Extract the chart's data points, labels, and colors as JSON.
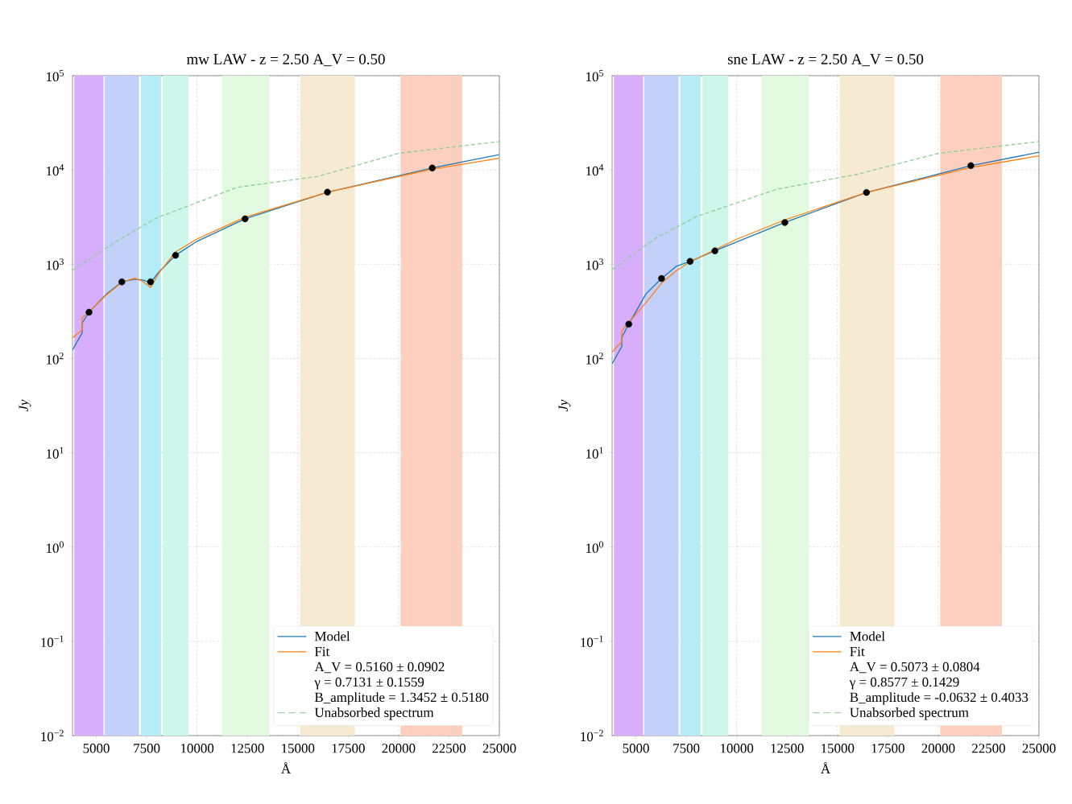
{
  "chart_data": [
    {
      "type": "line",
      "title": "sne LAW - z = 2.50 A_V = 0.50",
      "xlabel": "Å",
      "ylabel": "Jy",
      "log": "y",
      "grid": true,
      "legend": "bottom right",
      "xlim": [
        3820,
        25000
      ],
      "xticks": [
        5000,
        7500,
        10000,
        12500,
        15000,
        17500,
        20000,
        22500,
        25000
      ],
      "ylim": [
        0.01,
        100000
      ],
      "yticks": [
        {
          "value": 0.01,
          "label": "10$^{−2}$"
        },
        {
          "value": 0.1,
          "label": "10$^{−1}$"
        },
        {
          "value": 1,
          "label": "10$^{0}$"
        },
        {
          "value": 10,
          "label": "10$^{1}$"
        },
        {
          "value": 100,
          "label": "10$^{2}$"
        },
        {
          "value": 1000,
          "label": "10$^{3}$"
        },
        {
          "value": 10000,
          "label": "10$^{4}$"
        },
        {
          "value": 100000,
          "label": "10$^{5}$"
        }
      ],
      "bands": [
        {
          "axis": "x",
          "from": 3910,
          "to": 5360,
          "color": "#d6aefb"
        },
        {
          "axis": "x",
          "from": 5420,
          "to": 7120,
          "color": "#c3d1fa"
        },
        {
          "axis": "x",
          "from": 7210,
          "to": 8210,
          "color": "#b5ecf5"
        },
        {
          "axis": "x",
          "from": 8300,
          "to": 9570,
          "color": "#ccf7ea"
        },
        {
          "axis": "x",
          "from": 11230,
          "to": 13590,
          "color": "#e1fae0"
        },
        {
          "axis": "x",
          "from": 15110,
          "to": 17830,
          "color": "#f6ebd2"
        },
        {
          "axis": "x",
          "from": 20100,
          "to": 23160,
          "color": "#fdcfbf"
        }
      ],
      "annotations": [
        "A_V = 0.5073 ± 0.0804",
        "γ = 0.8577 ± 0.1429",
        "B_amplitude = -0.0632 ± 0.4033"
      ],
      "series": [
        {
          "name": "Model",
          "color": "#1f77b4",
          "x": [
            3820,
            4300,
            4300,
            4646,
            5500,
            6270,
            7000,
            7690,
            8920,
            10000,
            12390,
            16440,
            21620,
            25000
          ],
          "values": [
            88,
            134,
            168,
            231,
            485,
            706,
            950,
            1072,
            1387,
            1720,
            2770,
            5770,
            11100,
            15400
          ]
        },
        {
          "name": "Fit",
          "color": "#ff7f0e",
          "x": [
            3820,
            4300,
            4300,
            4646,
            5500,
            6270,
            7000,
            7690,
            8920,
            10000,
            12390,
            16440,
            21620,
            25000
          ],
          "values": [
            117,
            151,
            195,
            240,
            390,
            630,
            850,
            1060,
            1420,
            1840,
            2950,
            5770,
            10600,
            14100
          ]
        },
        {
          "name": "Unabsorbed spectrum",
          "line_style": "dashed",
          "color": "#8fcf8f",
          "x": [
            3820,
            6000,
            8000,
            12000,
            16000,
            20000,
            25000
          ],
          "values": [
            880,
            1900,
            3200,
            6250,
            9000,
            15000,
            20000
          ]
        },
        {
          "type": "scatter",
          "marker": "circle",
          "color": "#000000",
          "x": [
            4646,
            6270,
            7690,
            8920,
            12390,
            16440,
            21620
          ],
          "values": [
            231,
            706,
            1072,
            1387,
            2770,
            5770,
            11100
          ]
        }
      ]
    },
    {
      "type": "line",
      "title": "mw LAW - z = 2.50 A_V = 0.50",
      "xlabel": "Å",
      "ylabel": "Jy",
      "log": "y",
      "grid": true,
      "legend": "bottom right",
      "xlim": [
        3820,
        25000
      ],
      "xticks": [
        5000,
        7500,
        10000,
        12500,
        15000,
        17500,
        20000,
        22500,
        25000
      ],
      "ylim": [
        0.01,
        100000
      ],
      "yticks": [
        {
          "value": 0.01,
          "label": "10$^{−2}$"
        },
        {
          "value": 0.1,
          "label": "10$^{−1}$"
        },
        {
          "value": 1,
          "label": "10$^{0}$"
        },
        {
          "value": 10,
          "label": "10$^{1}$"
        },
        {
          "value": 100,
          "label": "10$^{2}$"
        },
        {
          "value": 1000,
          "label": "10$^{3}$"
        },
        {
          "value": 10000,
          "label": "10$^{4}$"
        },
        {
          "value": 100000,
          "label": "10$^{5}$"
        }
      ],
      "bands": [
        {
          "axis": "x",
          "from": 3910,
          "to": 5360,
          "color": "#d6aefb"
        },
        {
          "axis": "x",
          "from": 5420,
          "to": 7120,
          "color": "#c3d1fa"
        },
        {
          "axis": "x",
          "from": 7210,
          "to": 8210,
          "color": "#b5ecf5"
        },
        {
          "axis": "x",
          "from": 8300,
          "to": 9570,
          "color": "#ccf7ea"
        },
        {
          "axis": "x",
          "from": 11230,
          "to": 13590,
          "color": "#e1fae0"
        },
        {
          "axis": "x",
          "from": 15110,
          "to": 17830,
          "color": "#f6ebd2"
        },
        {
          "axis": "x",
          "from": 20100,
          "to": 23160,
          "color": "#fdcfbf"
        }
      ],
      "annotations": [
        "A_V = 0.5160 ± 0.0902",
        "γ = 0.7131 ± 0.1559",
        "B_amplitude = 1.3452 ± 0.5180"
      ],
      "series": [
        {
          "name": "Model",
          "color": "#1f77b4",
          "x": [
            3820,
            4300,
            4300,
            4640,
            5484,
            6270,
            6900,
            7300,
            7693,
            8100,
            8934,
            10000,
            12383,
            16470,
            21670,
            25000
          ],
          "values": [
            123,
            187,
            237,
            310,
            478,
            650,
            695,
            680,
            640,
            822,
            1245,
            1750,
            3030,
            5810,
            10500,
            14560
          ]
        },
        {
          "name": "Fit",
          "color": "#ff7f0e",
          "x": [
            3820,
            4300,
            4300,
            4640,
            5484,
            6270,
            6900,
            7300,
            7693,
            8100,
            8934,
            10000,
            12383,
            16470,
            21670,
            25000
          ],
          "values": [
            166,
            200,
            270,
            310,
            470,
            640,
            710,
            660,
            565,
            800,
            1350,
            1850,
            3150,
            5800,
            10200,
            13330
          ]
        },
        {
          "name": "Unabsorbed spectrum",
          "line_style": "dashed",
          "color": "#8fcf8f",
          "x": [
            3820,
            6000,
            8000,
            12000,
            16000,
            20000,
            25000
          ],
          "values": [
            865,
            1750,
            3100,
            6550,
            8540,
            15000,
            20000
          ]
        },
        {
          "type": "scatter",
          "marker": "circle",
          "color": "#000000",
          "x": [
            4640,
            6270,
            7693,
            8934,
            12383,
            16470,
            21670
          ],
          "values": [
            310,
            650,
            650,
            1245,
            3030,
            5810,
            10500
          ]
        }
      ]
    }
  ]
}
